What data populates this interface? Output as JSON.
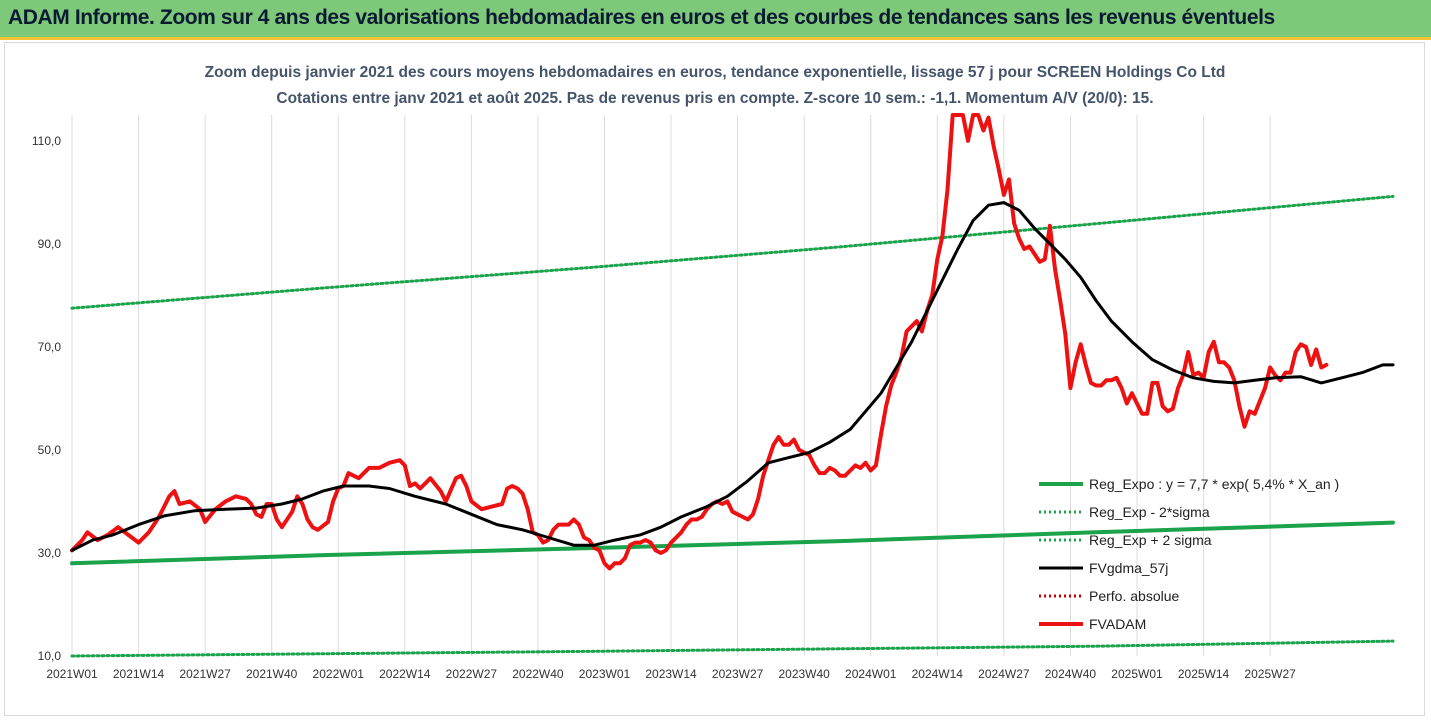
{
  "banner": {
    "title": "ADAM Informe. Zoom sur 4 ans des valorisations hebdomadaires en euros et des courbes de tendances sans les revenus éventuels"
  },
  "colors": {
    "banner_bg": "#7ec87a",
    "banner_border": "#f4c430",
    "reg_expo": "#1aa34a",
    "reg_band": "#1aa34a",
    "fvgdma": "#000000",
    "perfo": "#cc0000",
    "fvadam": "#ee1111",
    "title_text": "#44546a",
    "grid": "#dcdcdc"
  },
  "chart_data": {
    "type": "line",
    "title": "Zoom depuis janvier 2021 des cours moyens hebdomadaires en euros, tendance exponentielle, lissage 57 j pour SCREEN Holdings Co Ltd",
    "subtitle": "Cotations entre janv 2021 et août 2025.  Pas de revenus pris en compte. Z-score 10 sem.: -1,1. Momentum A/V (20/0): 15.",
    "xlabel": "",
    "ylabel": "",
    "x_ticks": [
      "2021W01",
      "2021W14",
      "2021W27",
      "2021W40",
      "2022W01",
      "2022W14",
      "2022W27",
      "2022W40",
      "2023W01",
      "2023W14",
      "2023W27",
      "2023W40",
      "2024W01",
      "2024W14",
      "2024W27",
      "2024W40",
      "2025W01",
      "2025W14",
      "2025W27"
    ],
    "x_range_weeks": [
      0,
      258
    ],
    "ylim": [
      10,
      115
    ],
    "y_ticks": [
      "10,0",
      "30,0",
      "50,0",
      "70,0",
      "90,0",
      "110,0"
    ],
    "y_tick_values": [
      10,
      30,
      50,
      70,
      90,
      110
    ],
    "grid": "vertical",
    "legend_position": "right",
    "series": [
      {
        "name": "Reg_Expo : y = 7,7 * exp( 5,4% *  X_an )",
        "style": "solid-thick",
        "color_key": "reg_expo",
        "points": [
          [
            0,
            28.0
          ],
          [
            50,
            29.6
          ],
          [
            100,
            30.9
          ],
          [
            150,
            32.3
          ],
          [
            200,
            34.0
          ],
          [
            258,
            35.9
          ]
        ]
      },
      {
        "name": "Reg_Exp - 2*sigma",
        "style": "dotted",
        "color_key": "reg_band",
        "points": [
          [
            0,
            10.0
          ],
          [
            100,
            10.9
          ],
          [
            150,
            11.4
          ],
          [
            200,
            11.9
          ],
          [
            258,
            12.9
          ]
        ]
      },
      {
        "name": "Reg_Exp + 2 sigma",
        "style": "dotted",
        "color_key": "reg_band",
        "points": [
          [
            0,
            77.5
          ],
          [
            50,
            81.5
          ],
          [
            100,
            85.3
          ],
          [
            150,
            89.4
          ],
          [
            200,
            93.9
          ],
          [
            258,
            99.2
          ]
        ]
      },
      {
        "name": "FVgdma_57j",
        "style": "solid",
        "color_key": "fvgdma",
        "points": [
          [
            0,
            30.5
          ],
          [
            4,
            32.5
          ],
          [
            8,
            33.5
          ],
          [
            13,
            35.5
          ],
          [
            18,
            37.2
          ],
          [
            24,
            38.2
          ],
          [
            30,
            38.5
          ],
          [
            36,
            38.7
          ],
          [
            41,
            39.5
          ],
          [
            45,
            40.5
          ],
          [
            49,
            42.0
          ],
          [
            53,
            43.0
          ],
          [
            58,
            43.0
          ],
          [
            62,
            42.5
          ],
          [
            67,
            41.0
          ],
          [
            73,
            39.5
          ],
          [
            78,
            37.5
          ],
          [
            83,
            35.5
          ],
          [
            88,
            34.5
          ],
          [
            93,
            33.0
          ],
          [
            98,
            31.5
          ],
          [
            102,
            31.5
          ],
          [
            106,
            32.5
          ],
          [
            111,
            33.5
          ],
          [
            115,
            35.0
          ],
          [
            119,
            37.0
          ],
          [
            124,
            39.0
          ],
          [
            128,
            41.0
          ],
          [
            132,
            44.0
          ],
          [
            136,
            47.5
          ],
          [
            140,
            48.5
          ],
          [
            144,
            49.5
          ],
          [
            148,
            51.5
          ],
          [
            152,
            54.0
          ],
          [
            155,
            57.5
          ],
          [
            158,
            61.0
          ],
          [
            161,
            66.0
          ],
          [
            164,
            71.0
          ],
          [
            167,
            77.0
          ],
          [
            170,
            83.0
          ],
          [
            173,
            89.0
          ],
          [
            176,
            94.5
          ],
          [
            179,
            97.5
          ],
          [
            182,
            98.0
          ],
          [
            185,
            96.5
          ],
          [
            188,
            93.0
          ],
          [
            191,
            90.0
          ],
          [
            194,
            87.0
          ],
          [
            197,
            83.5
          ],
          [
            200,
            79.0
          ],
          [
            203,
            75.0
          ],
          [
            207,
            71.0
          ],
          [
            211,
            67.5
          ],
          [
            215,
            65.5
          ],
          [
            219,
            64.0
          ],
          [
            223,
            63.3
          ],
          [
            227,
            63.0
          ],
          [
            231,
            63.5
          ],
          [
            235,
            64.0
          ],
          [
            240,
            64.2
          ],
          [
            244,
            63.0
          ],
          [
            248,
            64.0
          ],
          [
            252,
            65.0
          ],
          [
            256,
            66.5
          ],
          [
            258,
            66.5
          ]
        ]
      },
      {
        "name": "Perfo. absolue",
        "style": "dotted",
        "color_key": "perfo",
        "points": []
      },
      {
        "name": "FVADAM",
        "style": "solid-thick",
        "color_key": "fvadam",
        "points": [
          [
            0,
            30.5
          ],
          [
            2,
            32.5
          ],
          [
            3,
            34.0
          ],
          [
            5,
            32.5
          ],
          [
            7,
            33.5
          ],
          [
            9,
            35.0
          ],
          [
            11,
            33.5
          ],
          [
            13,
            32.0
          ],
          [
            15,
            34.0
          ],
          [
            17,
            37.0
          ],
          [
            19,
            41.0
          ],
          [
            20,
            42.0
          ],
          [
            21,
            39.5
          ],
          [
            23,
            40.0
          ],
          [
            25,
            38.5
          ],
          [
            26,
            36.0
          ],
          [
            28,
            38.5
          ],
          [
            30,
            40.0
          ],
          [
            32,
            41.0
          ],
          [
            34,
            40.5
          ],
          [
            35,
            39.5
          ],
          [
            36,
            37.5
          ],
          [
            37,
            37.0
          ],
          [
            38,
            39.5
          ],
          [
            39,
            39.5
          ],
          [
            40,
            36.5
          ],
          [
            41,
            35.0
          ],
          [
            43,
            38.0
          ],
          [
            44,
            41.0
          ],
          [
            45,
            39.5
          ],
          [
            46,
            36.5
          ],
          [
            47,
            35.0
          ],
          [
            48,
            34.5
          ],
          [
            50,
            36.0
          ],
          [
            51,
            40.0
          ],
          [
            52,
            42.5
          ],
          [
            53,
            43.0
          ],
          [
            54,
            45.5
          ],
          [
            55,
            45.0
          ],
          [
            56,
            44.5
          ],
          [
            58,
            46.5
          ],
          [
            60,
            46.5
          ],
          [
            62,
            47.5
          ],
          [
            64,
            48.0
          ],
          [
            65,
            47.0
          ],
          [
            66,
            43.0
          ],
          [
            67,
            43.5
          ],
          [
            68,
            42.5
          ],
          [
            70,
            44.5
          ],
          [
            72,
            42.0
          ],
          [
            73,
            40.0
          ],
          [
            75,
            44.5
          ],
          [
            76,
            45.0
          ],
          [
            77,
            43.0
          ],
          [
            78,
            40.0
          ],
          [
            80,
            38.5
          ],
          [
            82,
            39.0
          ],
          [
            84,
            39.5
          ],
          [
            85,
            42.5
          ],
          [
            86,
            43.0
          ],
          [
            87,
            42.5
          ],
          [
            88,
            41.5
          ],
          [
            89,
            38.5
          ],
          [
            90,
            34.0
          ],
          [
            91,
            33.5
          ],
          [
            92,
            32.0
          ],
          [
            93,
            32.5
          ],
          [
            94,
            34.5
          ],
          [
            95,
            35.5
          ],
          [
            97,
            35.5
          ],
          [
            98,
            36.5
          ],
          [
            99,
            35.5
          ],
          [
            100,
            33.0
          ],
          [
            101,
            32.5
          ],
          [
            102,
            31.0
          ],
          [
            103,
            30.5
          ],
          [
            104,
            28.0
          ],
          [
            105,
            27.0
          ],
          [
            106,
            28.0
          ],
          [
            107,
            28.0
          ],
          [
            108,
            29.0
          ],
          [
            109,
            31.5
          ],
          [
            110,
            32.0
          ],
          [
            111,
            32.0
          ],
          [
            112,
            32.5
          ],
          [
            113,
            32.0
          ],
          [
            114,
            30.5
          ],
          [
            115,
            30.0
          ],
          [
            116,
            30.5
          ],
          [
            117,
            32.0
          ],
          [
            118,
            33.0
          ],
          [
            119,
            34.0
          ],
          [
            120,
            35.5
          ],
          [
            121,
            36.5
          ],
          [
            122,
            36.5
          ],
          [
            123,
            37.0
          ],
          [
            124,
            38.5
          ],
          [
            125,
            39.5
          ],
          [
            126,
            40.0
          ],
          [
            127,
            39.5
          ],
          [
            128,
            40.0
          ],
          [
            129,
            38.0
          ],
          [
            130,
            37.5
          ],
          [
            131,
            37.0
          ],
          [
            132,
            36.5
          ],
          [
            133,
            37.5
          ],
          [
            134,
            40.5
          ],
          [
            135,
            45.0
          ],
          [
            136,
            48.0
          ],
          [
            137,
            51.0
          ],
          [
            138,
            52.5
          ],
          [
            139,
            51.0
          ],
          [
            140,
            51.0
          ],
          [
            141,
            52.0
          ],
          [
            142,
            50.0
          ],
          [
            143,
            49.5
          ],
          [
            144,
            49.0
          ],
          [
            145,
            47.0
          ],
          [
            146,
            45.5
          ],
          [
            147,
            45.5
          ],
          [
            148,
            46.5
          ],
          [
            149,
            46.0
          ],
          [
            150,
            45.0
          ],
          [
            151,
            45.0
          ],
          [
            152,
            46.0
          ],
          [
            153,
            47.0
          ],
          [
            154,
            46.5
          ],
          [
            155,
            47.5
          ],
          [
            156,
            46.0
          ],
          [
            157,
            47.0
          ],
          [
            158,
            53.0
          ],
          [
            159,
            58.5
          ],
          [
            160,
            62.5
          ],
          [
            161,
            65.0
          ],
          [
            162,
            68.0
          ],
          [
            163,
            73.0
          ],
          [
            164,
            74.0
          ],
          [
            165,
            75.0
          ],
          [
            166,
            73.0
          ],
          [
            167,
            77.0
          ],
          [
            168,
            80.0
          ],
          [
            169,
            87.0
          ],
          [
            170,
            91.5
          ],
          [
            171,
            100.5
          ],
          [
            172,
            115.0
          ],
          [
            173,
            115.0
          ],
          [
            174,
            115.0
          ],
          [
            175,
            110.0
          ],
          [
            176,
            115.0
          ],
          [
            177,
            115.0
          ],
          [
            178,
            112.0
          ],
          [
            179,
            114.5
          ],
          [
            180,
            109.0
          ],
          [
            181,
            104.5
          ],
          [
            182,
            99.5
          ],
          [
            183,
            102.5
          ],
          [
            184,
            94.0
          ],
          [
            185,
            91.0
          ],
          [
            186,
            89.0
          ],
          [
            187,
            89.5
          ],
          [
            188,
            88.0
          ],
          [
            189,
            86.5
          ],
          [
            190,
            87.0
          ],
          [
            191,
            93.5
          ],
          [
            192,
            85.0
          ],
          [
            193,
            79.0
          ],
          [
            194,
            72.5
          ],
          [
            195,
            62.0
          ],
          [
            196,
            67.0
          ],
          [
            197,
            70.5
          ],
          [
            198,
            66.5
          ],
          [
            199,
            63.0
          ],
          [
            200,
            62.5
          ],
          [
            201,
            62.5
          ],
          [
            202,
            63.5
          ],
          [
            203,
            63.5
          ],
          [
            204,
            64.0
          ],
          [
            205,
            62.0
          ],
          [
            206,
            59.0
          ],
          [
            207,
            61.0
          ],
          [
            208,
            59.0
          ],
          [
            209,
            57.0
          ],
          [
            210,
            57.0
          ],
          [
            211,
            63.0
          ],
          [
            212,
            63.0
          ],
          [
            213,
            58.5
          ],
          [
            214,
            57.5
          ],
          [
            215,
            58.0
          ],
          [
            216,
            62.0
          ],
          [
            217,
            64.5
          ],
          [
            218,
            69.0
          ],
          [
            219,
            64.5
          ],
          [
            220,
            65.0
          ],
          [
            221,
            64.0
          ],
          [
            222,
            69.0
          ],
          [
            223,
            71.0
          ],
          [
            224,
            67.0
          ],
          [
            225,
            67.0
          ],
          [
            226,
            66.0
          ],
          [
            227,
            63.5
          ],
          [
            228,
            58.5
          ],
          [
            229,
            54.5
          ],
          [
            230,
            57.5
          ],
          [
            231,
            57.0
          ],
          [
            232,
            59.5
          ],
          [
            233,
            62.0
          ],
          [
            234,
            66.0
          ],
          [
            235,
            64.5
          ],
          [
            236,
            63.5
          ],
          [
            237,
            65.0
          ],
          [
            238,
            65.0
          ],
          [
            239,
            69.0
          ],
          [
            240,
            70.5
          ],
          [
            241,
            70.0
          ],
          [
            242,
            66.5
          ],
          [
            243,
            69.5
          ],
          [
            244,
            66.0
          ],
          [
            245,
            66.5
          ]
        ]
      }
    ]
  }
}
